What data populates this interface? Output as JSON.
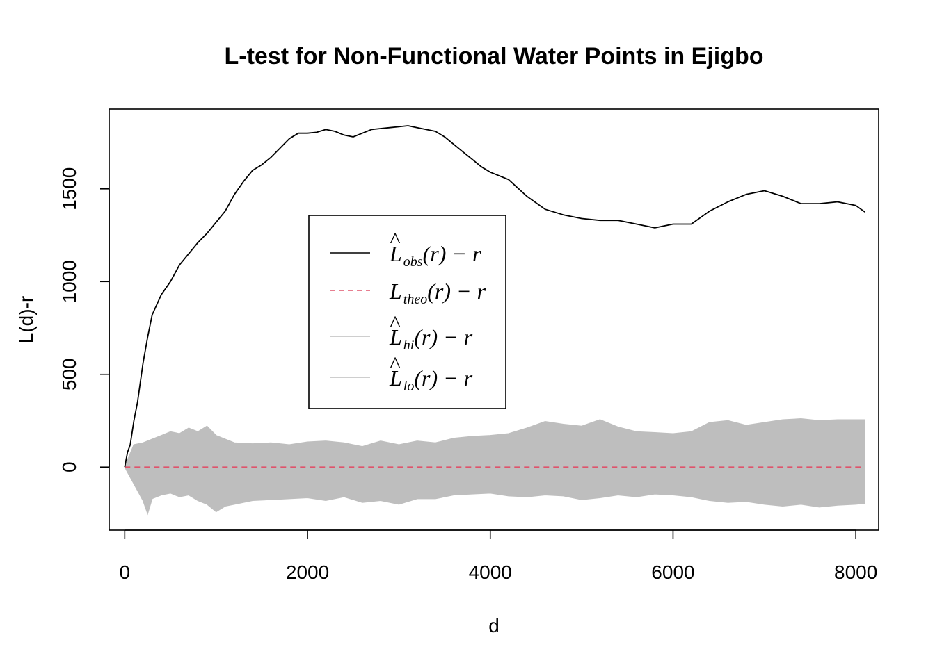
{
  "chart_data": {
    "type": "line",
    "title": "L-test for Non-Functional Water Points in Ejigbo",
    "xlabel": "d",
    "ylabel": "L(d)-r",
    "xlim": [
      -170,
      8250
    ],
    "ylim": [
      -340,
      1930
    ],
    "x_ticks": [
      0,
      2000,
      4000,
      6000,
      8000
    ],
    "x_tick_labels": [
      "0",
      "2000",
      "4000",
      "6000",
      "8000"
    ],
    "y_ticks": [
      0,
      500,
      1000,
      1500
    ],
    "y_tick_labels": [
      "0",
      "500",
      "1000",
      "1500"
    ],
    "grid": false,
    "legend_position": "center-left",
    "legend": [
      {
        "key": "obs",
        "main": "L",
        "sub": "obs",
        "tail": "(r) − r",
        "hat": "^",
        "line_style": "solid",
        "color": "#000000"
      },
      {
        "key": "theo",
        "main": "L",
        "sub": "theo",
        "tail": "(r) − r",
        "hat": "",
        "line_style": "dashed",
        "color": "#DF536B"
      },
      {
        "key": "hi",
        "main": "L",
        "sub": "hi",
        "tail": "(r) − r",
        "hat": "^",
        "line_style": "solid",
        "color": "#BEBEBE"
      },
      {
        "key": "lo",
        "main": "L",
        "sub": "lo",
        "tail": "(r) − r",
        "hat": "^",
        "line_style": "solid",
        "color": "#BEBEBE"
      }
    ],
    "colors": {
      "obs": "#000000",
      "theo": "#DF536B",
      "envelope": "#BEBEBE"
    },
    "series": [
      {
        "key": "obs",
        "x": [
          0,
          30,
          60,
          100,
          140,
          200,
          250,
          300,
          400,
          500,
          600,
          700,
          800,
          900,
          1000,
          1100,
          1200,
          1300,
          1400,
          1500,
          1600,
          1700,
          1800,
          1900,
          2000,
          2100,
          2200,
          2300,
          2400,
          2500,
          2600,
          2700,
          2800,
          2900,
          3000,
          3100,
          3200,
          3300,
          3400,
          3500,
          3600,
          3700,
          3800,
          3900,
          4000,
          4200,
          4400,
          4600,
          4800,
          5000,
          5200,
          5400,
          5600,
          5800,
          6000,
          6200,
          6400,
          6600,
          6800,
          7000,
          7200,
          7400,
          7600,
          7800,
          8000,
          8100
        ],
        "y": [
          0,
          80,
          120,
          250,
          350,
          560,
          700,
          820,
          930,
          1000,
          1090,
          1150,
          1210,
          1260,
          1320,
          1380,
          1470,
          1540,
          1600,
          1630,
          1670,
          1720,
          1770,
          1800,
          1800,
          1805,
          1820,
          1810,
          1790,
          1780,
          1800,
          1820,
          1825,
          1830,
          1835,
          1840,
          1830,
          1820,
          1810,
          1780,
          1740,
          1700,
          1660,
          1620,
          1590,
          1550,
          1460,
          1390,
          1360,
          1340,
          1330,
          1330,
          1310,
          1290,
          1310,
          1310,
          1380,
          1430,
          1470,
          1490,
          1460,
          1420,
          1420,
          1430,
          1410,
          1375
        ]
      },
      {
        "key": "theo",
        "x": [
          0,
          8100
        ],
        "y": [
          0,
          0
        ]
      },
      {
        "key": "hi",
        "x": [
          0,
          100,
          200,
          300,
          400,
          500,
          600,
          700,
          800,
          900,
          1000,
          1200,
          1400,
          1600,
          1800,
          2000,
          2200,
          2400,
          2600,
          2800,
          3000,
          3200,
          3400,
          3600,
          3800,
          4000,
          4200,
          4400,
          4600,
          4800,
          5000,
          5200,
          5400,
          5600,
          5800,
          6000,
          6200,
          6400,
          6600,
          6800,
          7000,
          7200,
          7400,
          7600,
          7800,
          8000,
          8100
        ],
        "y": [
          0,
          120,
          130,
          150,
          170,
          190,
          180,
          210,
          190,
          220,
          170,
          130,
          125,
          130,
          120,
          135,
          140,
          130,
          110,
          140,
          120,
          140,
          130,
          155,
          165,
          170,
          180,
          210,
          245,
          230,
          220,
          255,
          215,
          190,
          185,
          180,
          190,
          240,
          250,
          225,
          240,
          255,
          260,
          250,
          255,
          255,
          255
        ]
      },
      {
        "key": "lo",
        "x": [
          0,
          100,
          200,
          250,
          300,
          400,
          500,
          600,
          700,
          800,
          900,
          1000,
          1100,
          1200,
          1400,
          1600,
          1800,
          2000,
          2200,
          2400,
          2600,
          2800,
          3000,
          3200,
          3400,
          3600,
          3800,
          4000,
          4200,
          4400,
          4600,
          4800,
          5000,
          5200,
          5400,
          5600,
          5800,
          6000,
          6200,
          6400,
          6600,
          6800,
          7000,
          7200,
          7400,
          7600,
          7800,
          8000,
          8100
        ],
        "y": [
          0,
          -90,
          -180,
          -250,
          -170,
          -150,
          -140,
          -160,
          -150,
          -180,
          -200,
          -240,
          -210,
          -200,
          -180,
          -175,
          -170,
          -165,
          -180,
          -160,
          -190,
          -180,
          -200,
          -170,
          -170,
          -150,
          -145,
          -140,
          -155,
          -160,
          -150,
          -155,
          -175,
          -165,
          -150,
          -160,
          -145,
          -150,
          -160,
          -180,
          -190,
          -185,
          -200,
          -210,
          -200,
          -215,
          -205,
          -200,
          -195
        ]
      }
    ]
  }
}
